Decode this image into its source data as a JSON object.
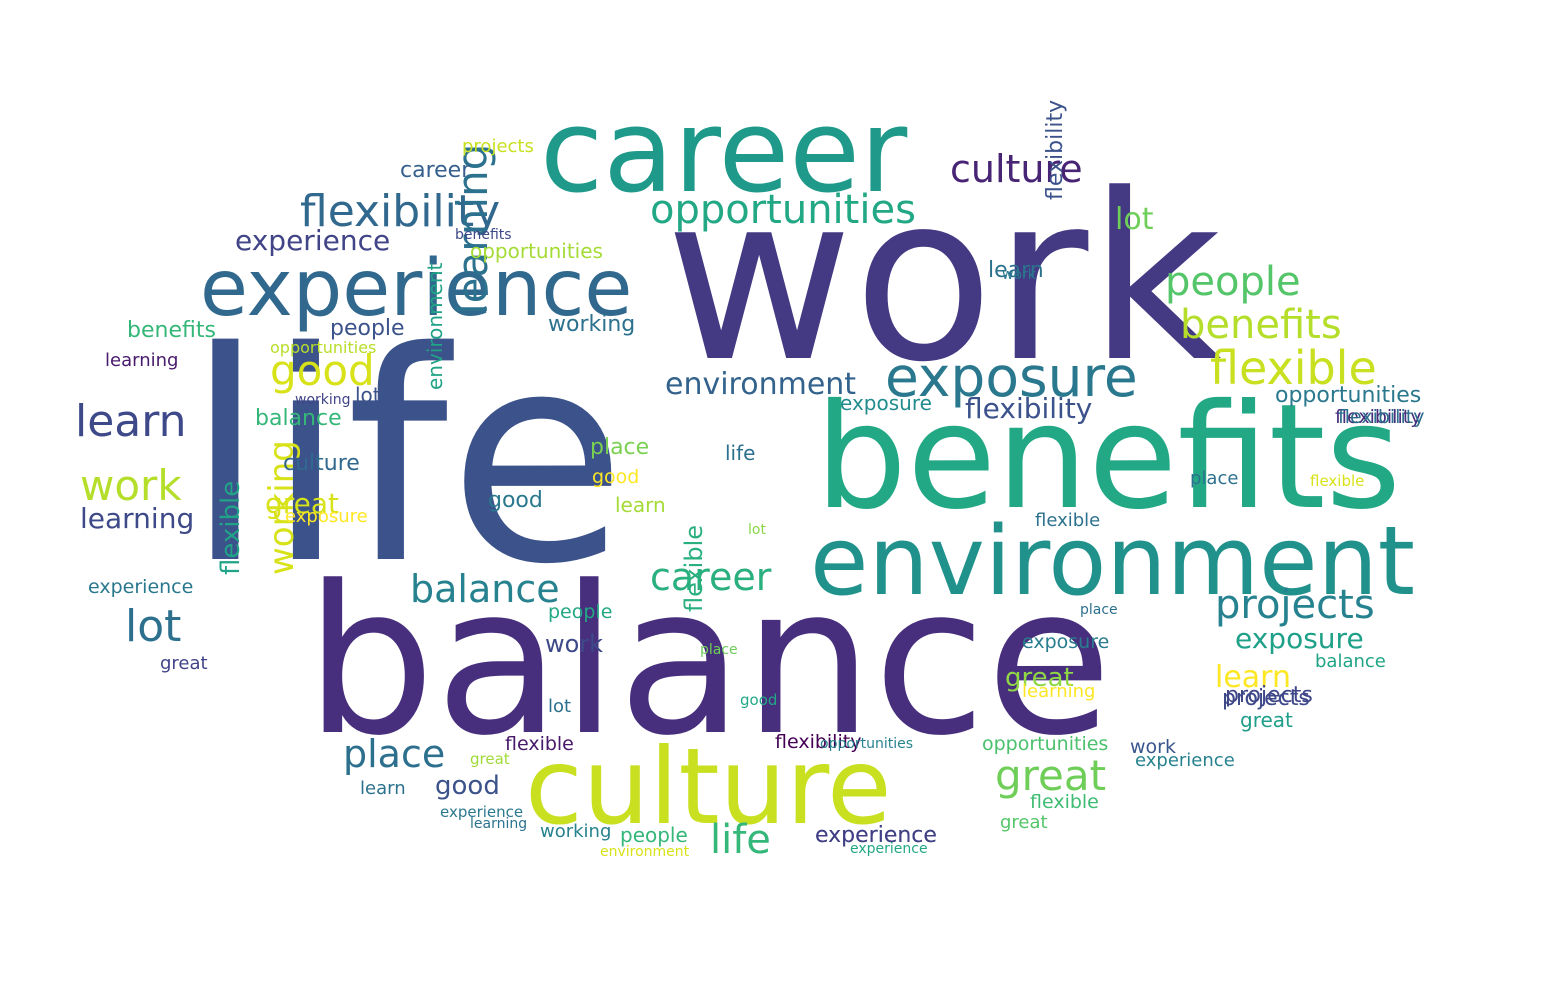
{
  "words": [
    {
      "text": "life",
      "color": "#3b528b",
      "rotated": false
    },
    {
      "text": "work",
      "color": "#443983",
      "rotated": false
    },
    {
      "text": "balance",
      "color": "#472f7d",
      "rotated": false
    },
    {
      "text": "benefits",
      "color": "#22a884",
      "rotated": false
    },
    {
      "text": "career",
      "color": "#1f9a8a",
      "rotated": false
    },
    {
      "text": "environment",
      "color": "#21918c",
      "rotated": false
    },
    {
      "text": "culture",
      "color": "#c8e020",
      "rotated": false
    },
    {
      "text": "experience",
      "color": "#31688e",
      "rotated": false
    },
    {
      "text": "exposure",
      "color": "#2a788e",
      "rotated": false
    },
    {
      "text": "opportunities",
      "color": "#22a884",
      "rotated": false
    },
    {
      "text": "flexibility",
      "color": "#31688e",
      "rotated": false
    },
    {
      "text": "culture",
      "color": "#482475",
      "rotated": false
    },
    {
      "text": "flexible",
      "color": "#c8e020",
      "rotated": false
    },
    {
      "text": "benefits",
      "color": "#b5de2b",
      "rotated": false
    },
    {
      "text": "people",
      "color": "#54c568",
      "rotated": false
    },
    {
      "text": "learn",
      "color": "#3e4989",
      "rotated": false
    },
    {
      "text": "good",
      "color": "#d8e219",
      "rotated": false
    },
    {
      "text": "work",
      "color": "#b5de2b",
      "rotated": false
    },
    {
      "text": "learning",
      "color": "#2c728e",
      "rotated": true
    },
    {
      "text": "projects",
      "color": "#26828e",
      "rotated": false
    },
    {
      "text": "balance",
      "color": "#26828e",
      "rotated": false
    },
    {
      "text": "career",
      "color": "#2ab07f",
      "rotated": false
    },
    {
      "text": "great",
      "color": "#6ece58",
      "rotated": false
    },
    {
      "text": "place",
      "color": "#2d708e",
      "rotated": false
    },
    {
      "text": "life",
      "color": "#35b779",
      "rotated": false
    },
    {
      "text": "lot",
      "color": "#2d708e",
      "rotated": false
    },
    {
      "text": "working",
      "color": "#d8e219",
      "rotated": true
    },
    {
      "text": "experience",
      "color": "#414487",
      "rotated": false
    },
    {
      "text": "flexibility",
      "color": "#3b528b",
      "rotated": false
    },
    {
      "text": "environment",
      "color": "#33638d",
      "rotated": false
    },
    {
      "text": "exposure",
      "color": "#1fa088",
      "rotated": false
    },
    {
      "text": "opportunities",
      "color": "#2a788e",
      "rotated": false
    },
    {
      "text": "learn",
      "color": "#fde725",
      "rotated": false
    },
    {
      "text": "projects",
      "color": "#3e4989",
      "rotated": false
    },
    {
      "text": "learning",
      "color": "#3e4989",
      "rotated": false
    },
    {
      "text": "great",
      "color": "#d8e219",
      "rotated": false
    },
    {
      "text": "flexible",
      "color": "#20a386",
      "rotated": true
    },
    {
      "text": "lot",
      "color": "#6ece58",
      "rotated": false
    },
    {
      "text": "career",
      "color": "#355f8d",
      "rotated": false
    },
    {
      "text": "experience",
      "color": "#2c728e",
      "rotated": false
    },
    {
      "text": "projects",
      "color": "#c8e020",
      "rotated": false
    },
    {
      "text": "working",
      "color": "#2c728e",
      "rotated": false
    },
    {
      "text": "people",
      "color": "#3b528b",
      "rotated": false
    },
    {
      "text": "balance",
      "color": "#35b779",
      "rotated": false
    },
    {
      "text": "culture",
      "color": "#31688e",
      "rotated": false
    },
    {
      "text": "exposure",
      "color": "#fde725",
      "rotated": false
    },
    {
      "text": "opportunities",
      "color": "#a5db36",
      "rotated": false
    },
    {
      "text": "benefits",
      "color": "#35b779",
      "rotated": false
    },
    {
      "text": "learning",
      "color": "#481a6c",
      "rotated": false
    },
    {
      "text": "flexibility",
      "color": "#3b528b",
      "rotated": true
    },
    {
      "text": "environment",
      "color": "#20a386",
      "rotated": true
    },
    {
      "text": "good",
      "color": "#2a788e",
      "rotated": false
    },
    {
      "text": "place",
      "color": "#7ad151",
      "rotated": false
    },
    {
      "text": "life",
      "color": "#2d708e",
      "rotated": false
    },
    {
      "text": "work",
      "color": "#3e4989",
      "rotated": false
    },
    {
      "text": "great",
      "color": "#8fd744",
      "rotated": false
    },
    {
      "text": "learn",
      "color": "#a5db36",
      "rotated": false
    },
    {
      "text": "flexibility",
      "color": "#440154",
      "rotated": false
    },
    {
      "text": "exposure",
      "color": "#228c8d",
      "rotated": false
    },
    {
      "text": "great",
      "color": "#1f9e89",
      "rotated": false
    },
    {
      "text": "learn",
      "color": "#2c728e",
      "rotated": false
    },
    {
      "text": "projects",
      "color": "#3f4788",
      "rotated": false
    },
    {
      "text": "balance",
      "color": "#20a486",
      "rotated": false
    },
    {
      "text": "experience",
      "color": "#2a788e",
      "rotated": false
    },
    {
      "text": "lot",
      "color": "#3b528b",
      "rotated": false
    },
    {
      "text": "flexible",
      "color": "#48186a",
      "rotated": false
    },
    {
      "text": "flexibility",
      "color": "#472d7b",
      "rotated": false
    },
    {
      "text": "experience",
      "color": "#433e85",
      "rotated": false
    },
    {
      "text": "opportunities",
      "color": "#4ac16d",
      "rotated": false
    },
    {
      "text": "good",
      "color": "#3b528b",
      "rotated": false
    },
    {
      "text": "place",
      "color": "#2c728e",
      "rotated": false
    },
    {
      "text": "work",
      "color": "#39568c",
      "rotated": false
    },
    {
      "text": "people",
      "color": "#35b779",
      "rotated": false
    },
    {
      "text": "learning",
      "color": "#fde725",
      "rotated": false
    },
    {
      "text": "experience",
      "color": "#26828e",
      "rotated": false
    },
    {
      "text": "exposure",
      "color": "#287c8e",
      "rotated": false
    },
    {
      "text": "flexible",
      "color": "#3fbc73",
      "rotated": false
    },
    {
      "text": "great",
      "color": "#54c568",
      "rotated": false
    },
    {
      "text": "learn",
      "color": "#2c728e",
      "rotated": false
    },
    {
      "text": "working",
      "color": "#26828e",
      "rotated": false
    },
    {
      "text": "people",
      "color": "#22a884",
      "rotated": false
    },
    {
      "text": "experience",
      "color": "#2a788e",
      "rotated": false
    },
    {
      "text": "learning",
      "color": "#2c728e",
      "rotated": false
    },
    {
      "text": "environment",
      "color": "#d8e219",
      "rotated": false
    },
    {
      "text": "opportunities",
      "color": "#26828e",
      "rotated": false
    },
    {
      "text": "experience",
      "color": "#22a884",
      "rotated": false
    },
    {
      "text": "great",
      "color": "#a0da39",
      "rotated": false
    },
    {
      "text": "flexible",
      "color": "#2c728e",
      "rotated": false
    },
    {
      "text": "working",
      "color": "#404588",
      "rotated": false
    },
    {
      "text": "benefits",
      "color": "#3e4989",
      "rotated": false
    },
    {
      "text": "good",
      "color": "#fde725",
      "rotated": false
    },
    {
      "text": "great",
      "color": "#414487",
      "rotated": false
    },
    {
      "text": "lot",
      "color": "#2d708e",
      "rotated": false
    },
    {
      "text": "flexible",
      "color": "#2ab07f",
      "rotated": true
    },
    {
      "text": "place",
      "color": "#2d708e",
      "rotated": false
    },
    {
      "text": "opportunities",
      "color": "#b8de29",
      "rotated": false
    },
    {
      "text": "place",
      "color": "#6ece58",
      "rotated": false
    },
    {
      "text": "lot",
      "color": "#8bd646",
      "rotated": false
    },
    {
      "text": "good",
      "color": "#22a884",
      "rotated": false
    },
    {
      "text": "flexible",
      "color": "#d8e219",
      "rotated": false
    },
    {
      "text": "work",
      "color": "#2a788e",
      "rotated": false
    },
    {
      "text": "flexibility",
      "color": "#2d708e",
      "rotated": false
    }
  ]
}
